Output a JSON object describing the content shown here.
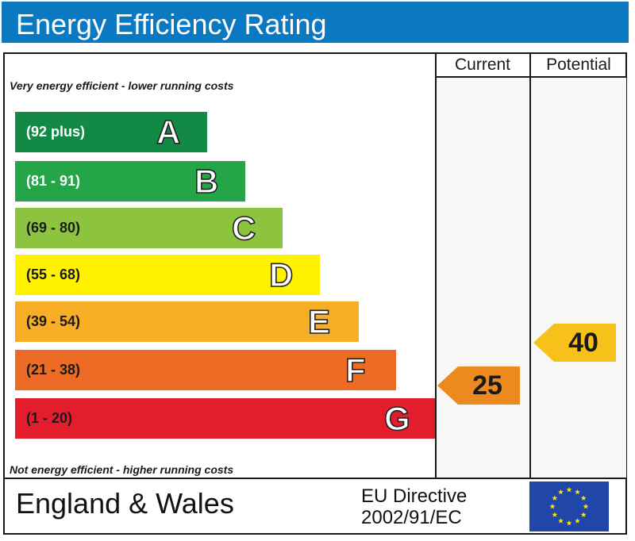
{
  "title": "Energy Efficiency Rating",
  "columns": {
    "current": "Current",
    "potential": "Potential"
  },
  "top_caption": "Very energy efficient - lower running costs",
  "bottom_caption": "Not energy efficient - higher running costs",
  "footer": {
    "country": "England & Wales",
    "directive_line1": "EU Directive",
    "directive_line2": "2002/91/EC"
  },
  "chart_data": {
    "type": "bar",
    "title": "Energy Efficiency Rating",
    "categories": [
      "A",
      "B",
      "C",
      "D",
      "E",
      "F",
      "G"
    ],
    "ranges": [
      "(92 plus)",
      "(81 - 91)",
      "(69 - 80)",
      "(55 - 68)",
      "(39 - 54)",
      "(21 - 38)",
      "(1 - 20)"
    ],
    "colors": [
      "#128a45",
      "#23a548",
      "#8cc43f",
      "#fff200",
      "#f7ae25",
      "#ed6b24",
      "#e41d2d"
    ],
    "range_text_colors": [
      "#ffffff",
      "#ffffff",
      "#1a1a1a",
      "#1a1a1a",
      "#1a1a1a",
      "#1a1a1a",
      "#1a1a1a"
    ],
    "current": {
      "value": 25,
      "band": "F",
      "color": "#ed8a1f"
    },
    "potential": {
      "value": 40,
      "band": "E",
      "color": "#f7c11a"
    }
  }
}
